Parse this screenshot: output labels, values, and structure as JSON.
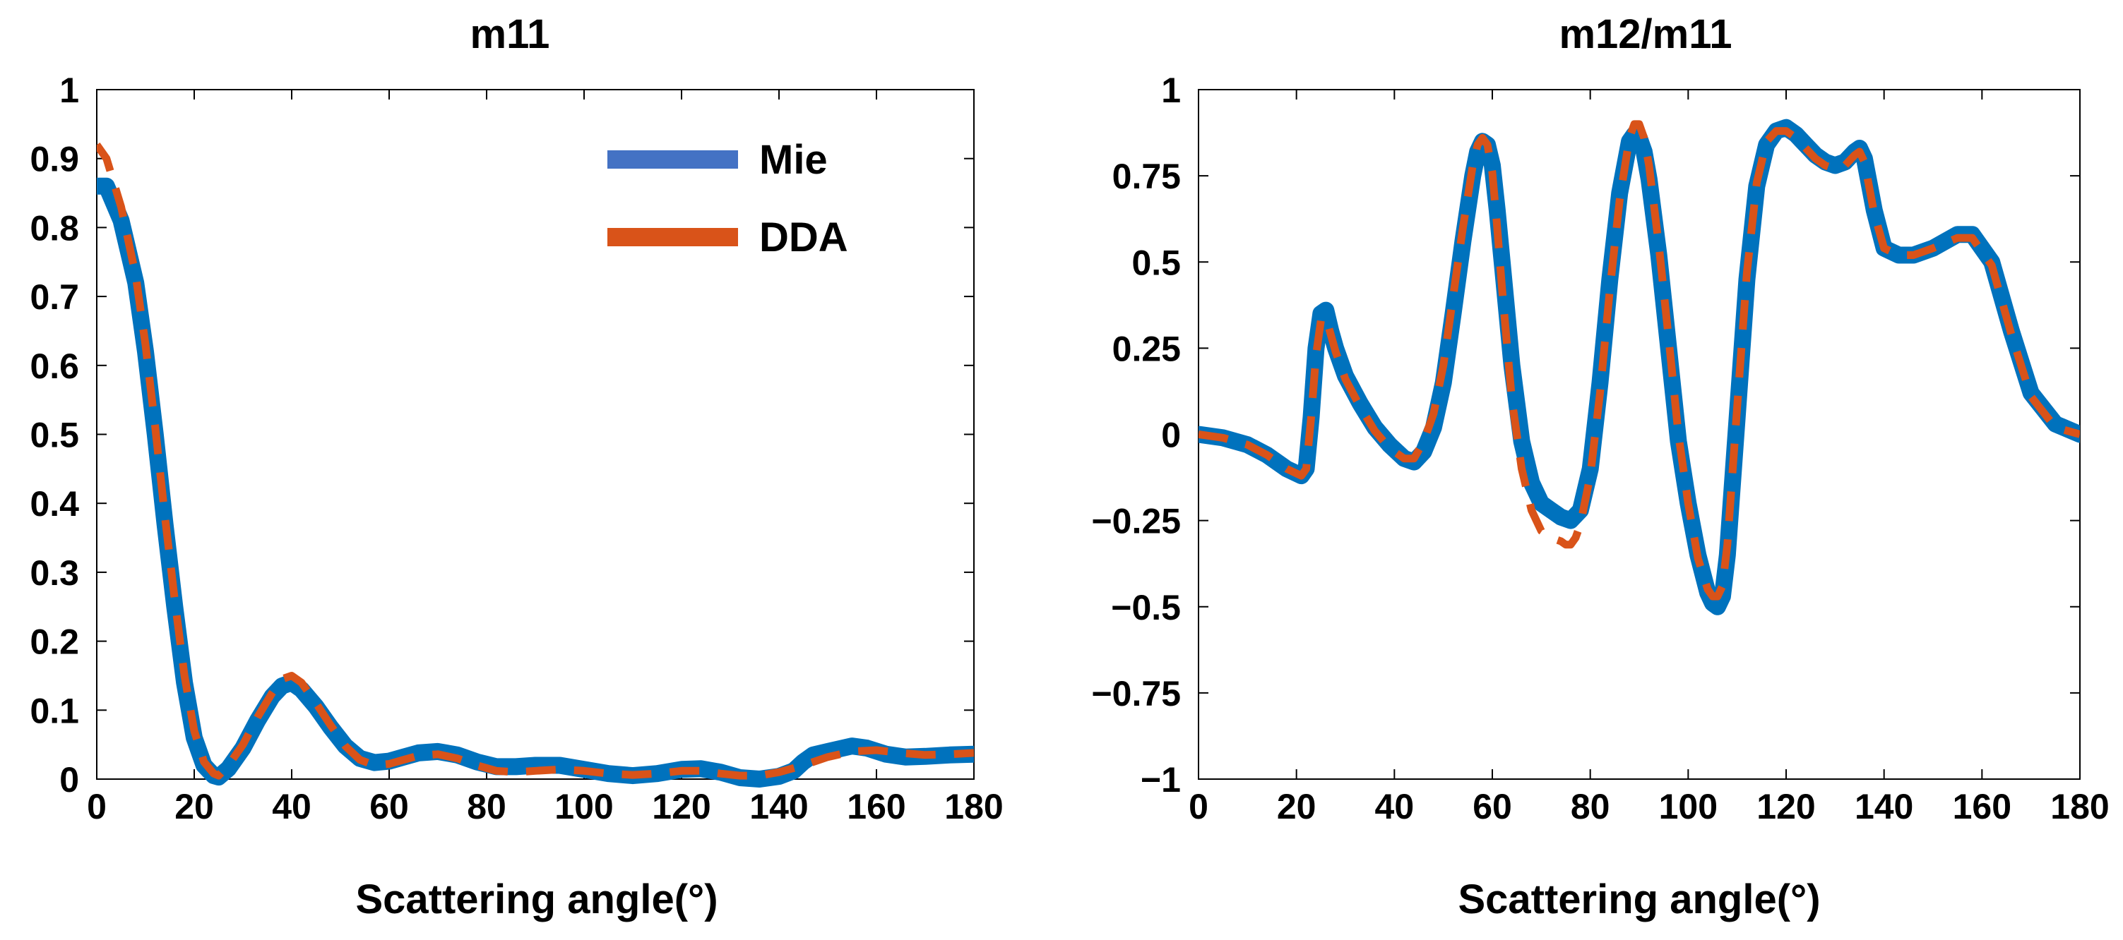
{
  "colors": {
    "mie": "#0072BD",
    "mie_legend": "#4472C4",
    "dda": "#D95319",
    "axis": "#000000",
    "background": "#ffffff"
  },
  "chart_data": [
    {
      "type": "line",
      "title": "m11",
      "xlabel": "Scattering angle(°)",
      "ylabel": "",
      "xlim": [
        0,
        180
      ],
      "ylim": [
        0,
        1
      ],
      "xticks": [
        0,
        20,
        40,
        60,
        80,
        100,
        120,
        140,
        160,
        180
      ],
      "xtick_labels": [
        "0",
        "20",
        "40",
        "60",
        "80",
        "100",
        "120",
        "140",
        "160",
        "180"
      ],
      "yticks": [
        0,
        0.1,
        0.2,
        0.3,
        0.4,
        0.5,
        0.6,
        0.7,
        0.8,
        0.9,
        1
      ],
      "ytick_labels": [
        "0",
        "0.1",
        "0.2",
        "0.3",
        "0.4",
        "0.5",
        "0.6",
        "0.7",
        "0.8",
        "0.9",
        "1"
      ],
      "grid": false,
      "legend_position": "top-right",
      "legend": [
        "Mie",
        "DDA"
      ],
      "series": [
        {
          "name": "Mie",
          "style": "solid",
          "x": [
            0,
            2,
            5,
            8,
            10,
            12,
            14,
            16,
            18,
            20,
            22,
            24,
            25,
            27,
            30,
            33,
            36,
            38,
            40,
            42,
            45,
            48,
            51,
            54,
            57,
            60,
            63,
            66,
            70,
            74,
            78,
            82,
            86,
            90,
            95,
            100,
            105,
            110,
            115,
            120,
            124,
            128,
            132,
            136,
            140,
            143,
            145,
            147,
            150,
            155,
            158,
            162,
            166,
            170,
            175,
            180
          ],
          "y": [
            0.86,
            0.86,
            0.81,
            0.72,
            0.62,
            0.5,
            0.37,
            0.25,
            0.14,
            0.06,
            0.02,
            0.005,
            0.003,
            0.015,
            0.045,
            0.085,
            0.12,
            0.135,
            0.14,
            0.13,
            0.105,
            0.075,
            0.048,
            0.03,
            0.024,
            0.026,
            0.032,
            0.038,
            0.04,
            0.035,
            0.025,
            0.018,
            0.018,
            0.02,
            0.02,
            0.014,
            0.008,
            0.005,
            0.008,
            0.014,
            0.015,
            0.01,
            0.002,
            0.0,
            0.004,
            0.012,
            0.025,
            0.035,
            0.04,
            0.048,
            0.045,
            0.036,
            0.032,
            0.033,
            0.035,
            0.036
          ]
        },
        {
          "name": "DDA",
          "style": "dashed",
          "x": [
            0,
            2,
            5,
            8,
            10,
            12,
            14,
            16,
            18,
            20,
            22,
            24,
            25,
            27,
            30,
            33,
            36,
            38,
            40,
            42,
            45,
            48,
            51,
            54,
            57,
            60,
            63,
            66,
            70,
            74,
            78,
            82,
            86,
            90,
            95,
            100,
            105,
            110,
            115,
            120,
            124,
            128,
            132,
            136,
            140,
            145,
            150,
            155,
            160,
            165,
            170,
            175,
            180
          ],
          "y": [
            0.92,
            0.9,
            0.83,
            0.73,
            0.63,
            0.51,
            0.38,
            0.26,
            0.15,
            0.07,
            0.025,
            0.008,
            0.005,
            0.02,
            0.05,
            0.09,
            0.125,
            0.145,
            0.15,
            0.14,
            0.11,
            0.078,
            0.048,
            0.028,
            0.02,
            0.022,
            0.028,
            0.034,
            0.036,
            0.03,
            0.02,
            0.012,
            0.01,
            0.012,
            0.014,
            0.012,
            0.008,
            0.006,
            0.008,
            0.012,
            0.012,
            0.008,
            0.005,
            0.005,
            0.01,
            0.02,
            0.032,
            0.04,
            0.042,
            0.038,
            0.035,
            0.036,
            0.038
          ]
        }
      ]
    },
    {
      "type": "line",
      "title": "m12/m11",
      "xlabel": "Scattering angle(°)",
      "ylabel": "",
      "xlim": [
        0,
        180
      ],
      "ylim": [
        -1,
        1
      ],
      "xticks": [
        0,
        20,
        40,
        60,
        80,
        100,
        120,
        140,
        160,
        180
      ],
      "xtick_labels": [
        "0",
        "20",
        "40",
        "60",
        "80",
        "100",
        "120",
        "140",
        "160",
        "180"
      ],
      "yticks": [
        -1,
        -0.75,
        -0.5,
        -0.25,
        0,
        0.25,
        0.5,
        0.75,
        1
      ],
      "ytick_labels": [
        "−1",
        "−0.75",
        "−0.5",
        "−0.25",
        "0",
        "0.25",
        "0.5",
        "0.75",
        "1"
      ],
      "grid": false,
      "series": [
        {
          "name": "Mie",
          "style": "solid",
          "x": [
            0,
            5,
            10,
            14,
            18,
            21,
            22,
            23,
            24,
            25,
            26,
            27,
            28,
            30,
            33,
            36,
            39,
            42,
            44,
            46,
            48,
            50,
            52,
            54,
            56,
            57,
            58,
            59,
            60,
            61,
            62,
            64,
            66,
            68,
            70,
            72,
            74,
            76,
            78,
            80,
            82,
            84,
            86,
            88,
            89,
            90,
            91,
            92,
            94,
            96,
            98,
            100,
            102,
            104,
            105,
            106,
            107,
            108,
            110,
            112,
            114,
            116,
            118,
            120,
            122,
            124,
            126,
            128,
            130,
            132,
            134,
            135,
            136,
            138,
            140,
            143,
            146,
            150,
            155,
            158,
            162,
            166,
            170,
            175,
            180
          ],
          "y": [
            0.0,
            -0.01,
            -0.03,
            -0.06,
            -0.1,
            -0.12,
            -0.1,
            0.05,
            0.25,
            0.35,
            0.36,
            0.3,
            0.25,
            0.17,
            0.09,
            0.02,
            -0.03,
            -0.07,
            -0.08,
            -0.05,
            0.02,
            0.15,
            0.35,
            0.56,
            0.75,
            0.82,
            0.85,
            0.84,
            0.78,
            0.65,
            0.5,
            0.2,
            -0.02,
            -0.14,
            -0.2,
            -0.22,
            -0.24,
            -0.25,
            -0.22,
            -0.1,
            0.15,
            0.45,
            0.7,
            0.85,
            0.87,
            0.86,
            0.82,
            0.74,
            0.52,
            0.25,
            -0.02,
            -0.2,
            -0.35,
            -0.46,
            -0.49,
            -0.5,
            -0.47,
            -0.35,
            0.05,
            0.45,
            0.72,
            0.84,
            0.88,
            0.89,
            0.87,
            0.84,
            0.81,
            0.79,
            0.78,
            0.79,
            0.82,
            0.83,
            0.8,
            0.65,
            0.54,
            0.52,
            0.52,
            0.54,
            0.58,
            0.58,
            0.5,
            0.3,
            0.12,
            0.03,
            0.0
          ]
        },
        {
          "name": "DDA",
          "style": "dashed",
          "x": [
            0,
            5,
            10,
            14,
            18,
            21,
            22,
            23,
            24,
            25,
            26,
            27,
            28,
            30,
            33,
            36,
            39,
            42,
            44,
            46,
            48,
            50,
            52,
            54,
            56,
            57,
            58,
            59,
            60,
            61,
            62,
            64,
            66,
            68,
            70,
            72,
            74,
            75,
            76,
            77,
            78,
            80,
            82,
            84,
            86,
            88,
            89,
            90,
            91,
            92,
            94,
            96,
            98,
            100,
            102,
            104,
            105,
            106,
            107,
            108,
            110,
            112,
            114,
            116,
            118,
            120,
            122,
            124,
            126,
            128,
            130,
            132,
            134,
            135,
            136,
            138,
            140,
            143,
            146,
            150,
            155,
            158,
            162,
            166,
            170,
            175,
            180
          ],
          "y": [
            0.0,
            -0.01,
            -0.03,
            -0.06,
            -0.1,
            -0.12,
            -0.1,
            0.05,
            0.23,
            0.33,
            0.34,
            0.29,
            0.24,
            0.16,
            0.08,
            0.01,
            -0.04,
            -0.07,
            -0.07,
            -0.02,
            0.06,
            0.2,
            0.4,
            0.6,
            0.78,
            0.84,
            0.86,
            0.84,
            0.76,
            0.6,
            0.42,
            0.1,
            -0.1,
            -0.22,
            -0.28,
            -0.3,
            -0.31,
            -0.32,
            -0.32,
            -0.3,
            -0.26,
            -0.12,
            0.12,
            0.42,
            0.68,
            0.86,
            0.9,
            0.9,
            0.86,
            0.78,
            0.55,
            0.28,
            0.0,
            -0.2,
            -0.36,
            -0.45,
            -0.47,
            -0.47,
            -0.44,
            -0.32,
            0.08,
            0.47,
            0.73,
            0.85,
            0.88,
            0.88,
            0.86,
            0.83,
            0.8,
            0.78,
            0.77,
            0.78,
            0.81,
            0.82,
            0.79,
            0.64,
            0.54,
            0.52,
            0.52,
            0.54,
            0.57,
            0.57,
            0.49,
            0.29,
            0.11,
            0.02,
            0.0
          ]
        }
      ]
    }
  ]
}
